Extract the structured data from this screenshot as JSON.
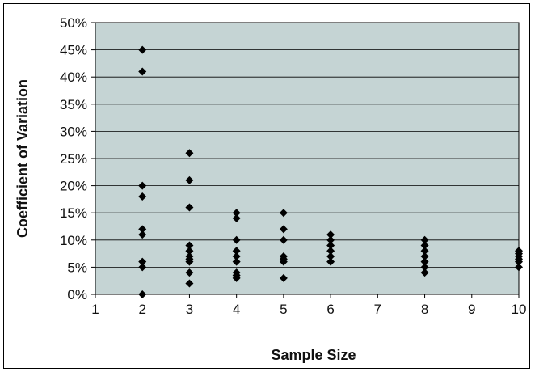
{
  "chart_data": {
    "type": "scatter",
    "title": "",
    "xlabel": "Sample Size",
    "ylabel": "Coefficient of Variation",
    "xlim": [
      1,
      10
    ],
    "ylim": [
      0,
      0.5
    ],
    "x_ticks": [
      "1",
      "2",
      "3",
      "4",
      "5",
      "6",
      "7",
      "8",
      "9",
      "10"
    ],
    "y_ticks": [
      "0%",
      "5%",
      "10%",
      "15%",
      "20%",
      "25%",
      "30%",
      "35%",
      "40%",
      "45%",
      "50%"
    ],
    "grid": "horizontal",
    "legend": "none",
    "plot_background": "#c5d4d4",
    "marker_color": "#000000",
    "series": [
      {
        "points": [
          [
            2,
            0.45
          ],
          [
            2,
            0.41
          ],
          [
            2,
            0.2
          ],
          [
            2,
            0.18
          ],
          [
            2,
            0.12
          ],
          [
            2,
            0.11
          ],
          [
            2,
            0.06
          ],
          [
            2,
            0.05
          ],
          [
            2,
            0.0
          ],
          [
            3,
            0.26
          ],
          [
            3,
            0.21
          ],
          [
            3,
            0.16
          ],
          [
            3,
            0.09
          ],
          [
            3,
            0.08
          ],
          [
            3,
            0.07
          ],
          [
            3,
            0.065
          ],
          [
            3,
            0.06
          ],
          [
            3,
            0.04
          ],
          [
            3,
            0.02
          ],
          [
            4,
            0.15
          ],
          [
            4,
            0.14
          ],
          [
            4,
            0.1
          ],
          [
            4,
            0.08
          ],
          [
            4,
            0.07
          ],
          [
            4,
            0.06
          ],
          [
            4,
            0.04
          ],
          [
            4,
            0.035
          ],
          [
            4,
            0.03
          ],
          [
            5,
            0.15
          ],
          [
            5,
            0.12
          ],
          [
            5,
            0.1
          ],
          [
            5,
            0.07
          ],
          [
            5,
            0.065
          ],
          [
            5,
            0.06
          ],
          [
            5,
            0.03
          ],
          [
            6,
            0.11
          ],
          [
            6,
            0.1
          ],
          [
            6,
            0.09
          ],
          [
            6,
            0.08
          ],
          [
            6,
            0.07
          ],
          [
            6,
            0.06
          ],
          [
            8,
            0.1
          ],
          [
            8,
            0.09
          ],
          [
            8,
            0.08
          ],
          [
            8,
            0.07
          ],
          [
            8,
            0.06
          ],
          [
            8,
            0.05
          ],
          [
            8,
            0.04
          ],
          [
            10,
            0.08
          ],
          [
            10,
            0.075
          ],
          [
            10,
            0.07
          ],
          [
            10,
            0.065
          ],
          [
            10,
            0.06
          ],
          [
            10,
            0.05
          ]
        ]
      }
    ]
  }
}
